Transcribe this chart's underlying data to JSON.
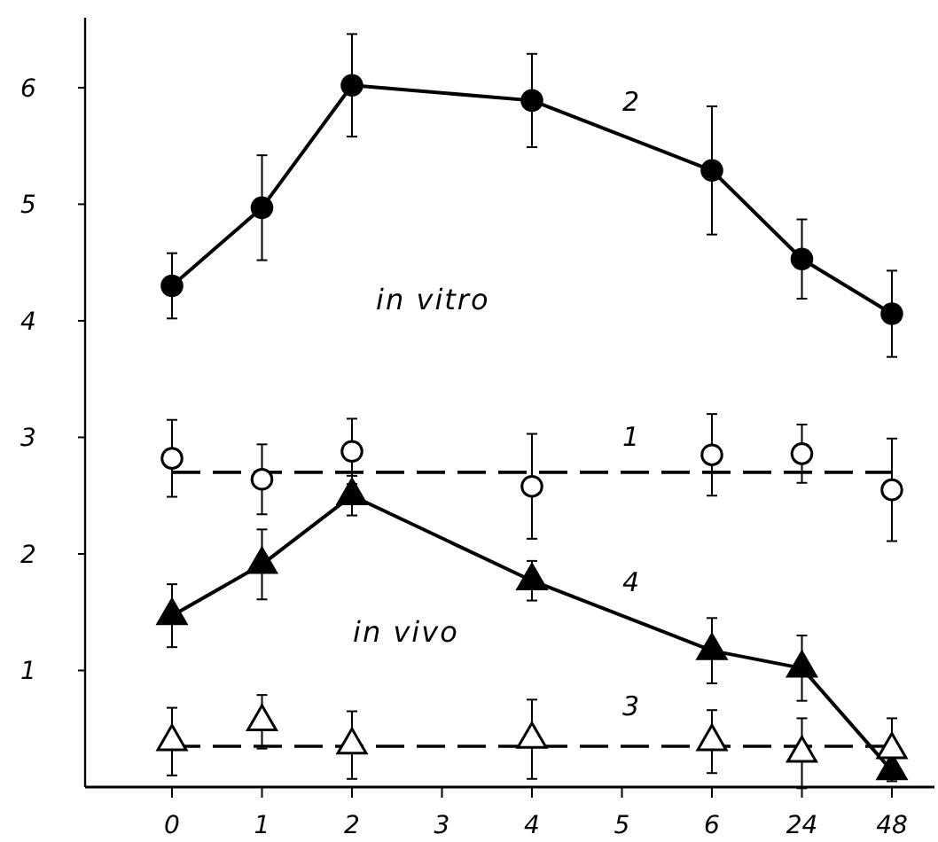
{
  "chart_data": {
    "type": "line",
    "categories": [
      "0",
      "1",
      "2",
      "3",
      "4",
      "5",
      "6",
      "24",
      "48"
    ],
    "ylim": [
      0,
      6.6
    ],
    "yticks": [
      1,
      2,
      3,
      4,
      5,
      6
    ],
    "grid": false,
    "annotations": [
      "in vitro",
      "in vivo"
    ],
    "series": [
      {
        "name": "2",
        "color": "#000000",
        "marker": "circle",
        "line_style": "solid",
        "values": [
          4.3,
          4.97,
          6.02,
          null,
          5.89,
          null,
          5.29,
          4.53,
          4.06
        ],
        "errors": [
          0.28,
          0.45,
          0.44,
          null,
          0.4,
          null,
          0.55,
          0.34,
          0.37
        ]
      },
      {
        "type": "line",
        "color": "#000000",
        "marker": "none",
        "line_style": "dashed",
        "values": [
          2.7,
          2.7,
          2.7,
          2.7,
          2.7,
          2.7,
          2.7,
          2.7,
          2.7
        ]
      },
      {
        "name": "1",
        "type": "scatter",
        "color": "#ffffff",
        "marker": "circle",
        "values": [
          2.82,
          2.64,
          2.88,
          null,
          2.58,
          null,
          2.85,
          2.86,
          2.55
        ],
        "errors": [
          0.33,
          0.3,
          0.28,
          null,
          0.45,
          null,
          0.35,
          0.25,
          0.44
        ]
      },
      {
        "name": "4",
        "color": "#000000",
        "marker": "triangle",
        "line_style": "solid",
        "values": [
          1.47,
          1.91,
          2.5,
          null,
          1.77,
          null,
          1.17,
          1.02,
          0.14
        ],
        "errors": [
          0.27,
          0.3,
          0.17,
          null,
          0.17,
          null,
          0.28,
          0.28,
          null
        ]
      },
      {
        "type": "line",
        "color": "#000000",
        "marker": "none",
        "line_style": "dashed",
        "values": [
          0.35,
          0.35,
          0.35,
          0.35,
          0.35,
          0.35,
          0.35,
          0.35,
          0.35
        ]
      },
      {
        "name": "3",
        "type": "scatter",
        "color": "#ffffff",
        "marker": "triangle",
        "values": [
          0.39,
          0.56,
          0.36,
          null,
          0.41,
          null,
          0.39,
          0.29,
          0.32
        ],
        "errors": [
          0.29,
          0.23,
          0.29,
          null,
          0.34,
          null,
          0.27,
          0.3,
          0.27
        ]
      }
    ]
  }
}
